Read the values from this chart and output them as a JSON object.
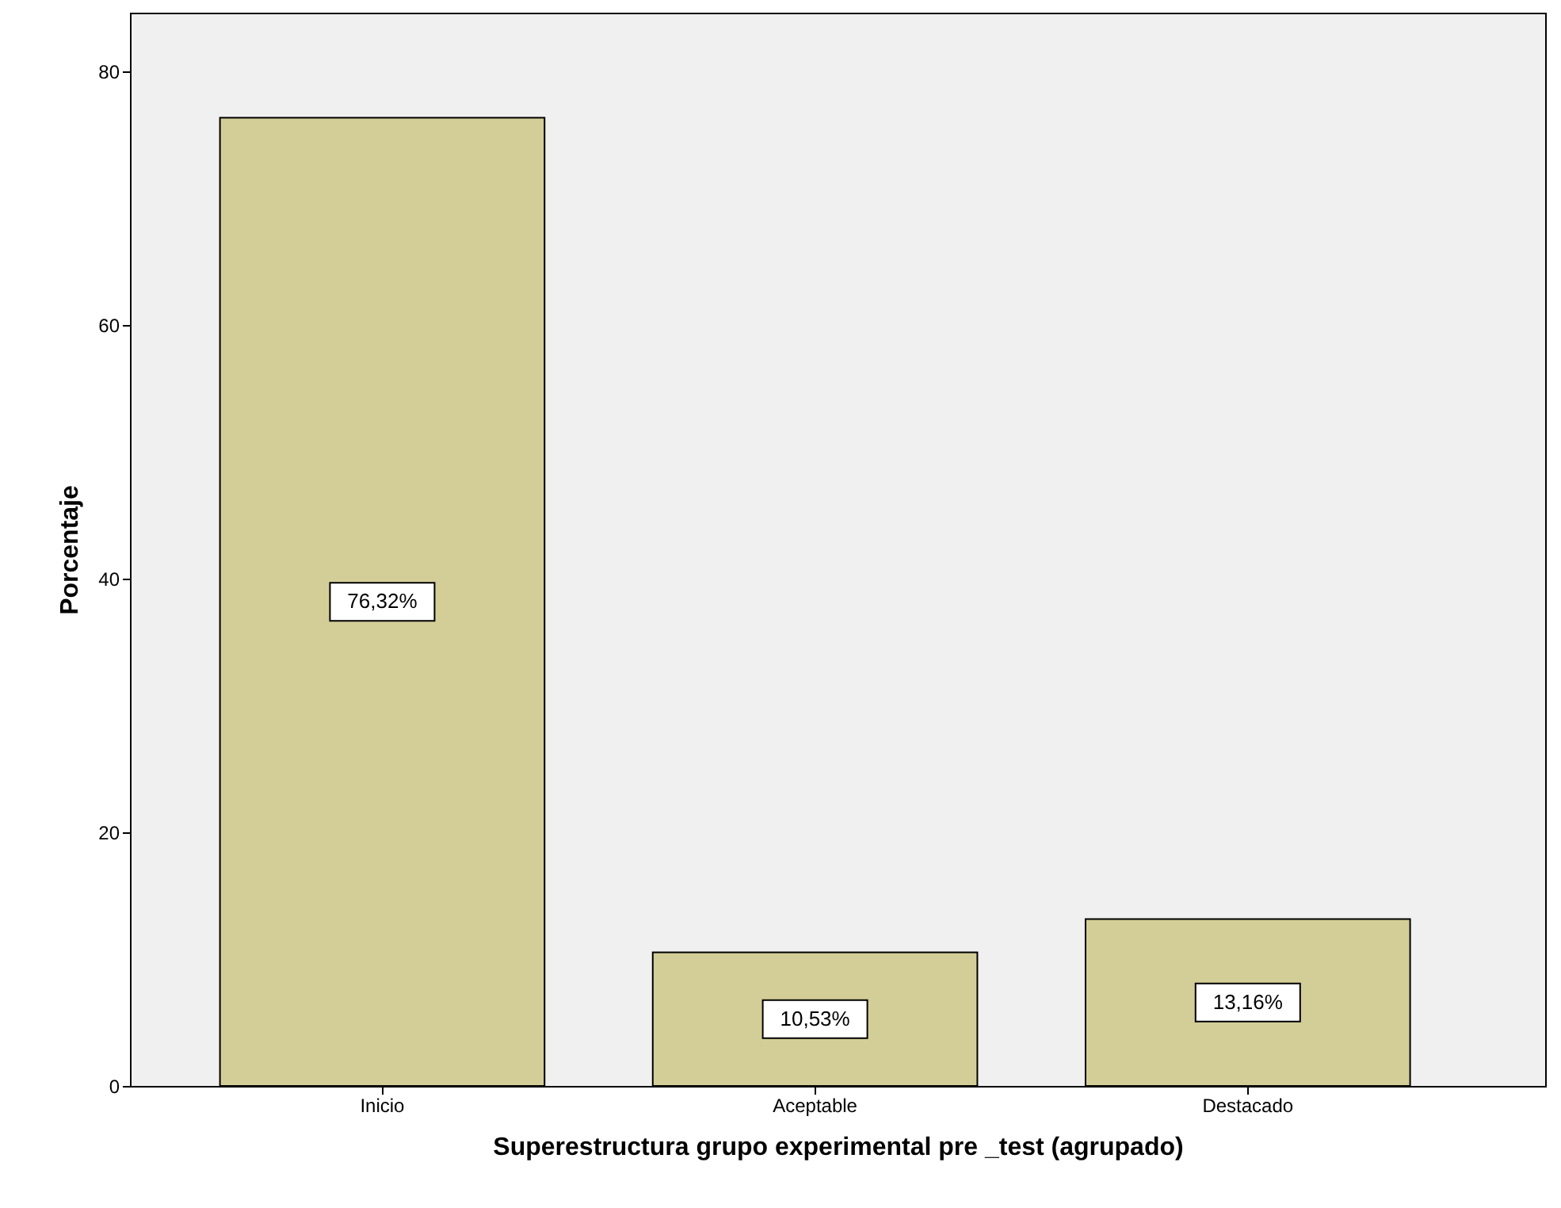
{
  "chart_data": {
    "type": "bar",
    "xlabel": "Superestructura  grupo experimental pre _test (agrupado)",
    "ylabel": "Porcentaje",
    "categories": [
      "Inicio",
      "Aceptable",
      "Destacado"
    ],
    "values": [
      76.32,
      10.53,
      13.16
    ],
    "value_labels": [
      "76,32%",
      "10,53%",
      "13,16%"
    ],
    "color": "#d3ce97",
    "ylim": [
      0,
      84.6
    ],
    "yticks": [
      0,
      20,
      40,
      60,
      80
    ],
    "grid": false
  }
}
